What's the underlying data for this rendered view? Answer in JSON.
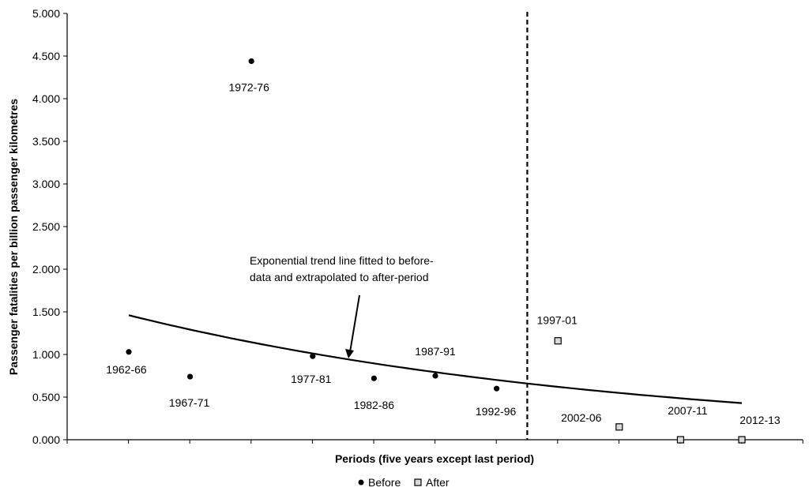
{
  "chart_data": {
    "type": "scatter",
    "title": "",
    "xlabel": "Periods (five years except last period)",
    "ylabel": "Passenger fatalities per billion passenger kilometres",
    "ylim": [
      0,
      5.0
    ],
    "y_ticks": [
      "0.000",
      "0.500",
      "1.000",
      "1.500",
      "2.000",
      "2.500",
      "3.000",
      "3.500",
      "4.000",
      "4.500",
      "5.000"
    ],
    "grid": false,
    "legend_position": "bottom",
    "series": [
      {
        "name": "Before",
        "marker": "filled-circle",
        "color": "#000000",
        "points": [
          {
            "x": "1962-66",
            "y": 1.03
          },
          {
            "x": "1967-71",
            "y": 0.74
          },
          {
            "x": "1972-76",
            "y": 4.44
          },
          {
            "x": "1977-81",
            "y": 0.98
          },
          {
            "x": "1982-86",
            "y": 0.72
          },
          {
            "x": "1987-91",
            "y": 0.75
          },
          {
            "x": "1992-96",
            "y": 0.6
          }
        ]
      },
      {
        "name": "After",
        "marker": "open-square",
        "color": "#d9d9d9",
        "points": [
          {
            "x": "1997-01",
            "y": 1.16
          },
          {
            "x": "2002-06",
            "y": 0.15
          },
          {
            "x": "2007-11",
            "y": 0.0
          },
          {
            "x": "2012-13",
            "y": 0.0
          }
        ]
      }
    ],
    "trend_line": {
      "type": "exponential",
      "from_period": "1962-66",
      "to_period": "2012-13",
      "y_start": 1.46,
      "y_end": 0.43
    },
    "divider_between": [
      "1992-96",
      "1997-01"
    ],
    "annotation": {
      "line1": "Exponential trend line fitted to before-",
      "line2": "data and extrapolated to after-period"
    }
  }
}
